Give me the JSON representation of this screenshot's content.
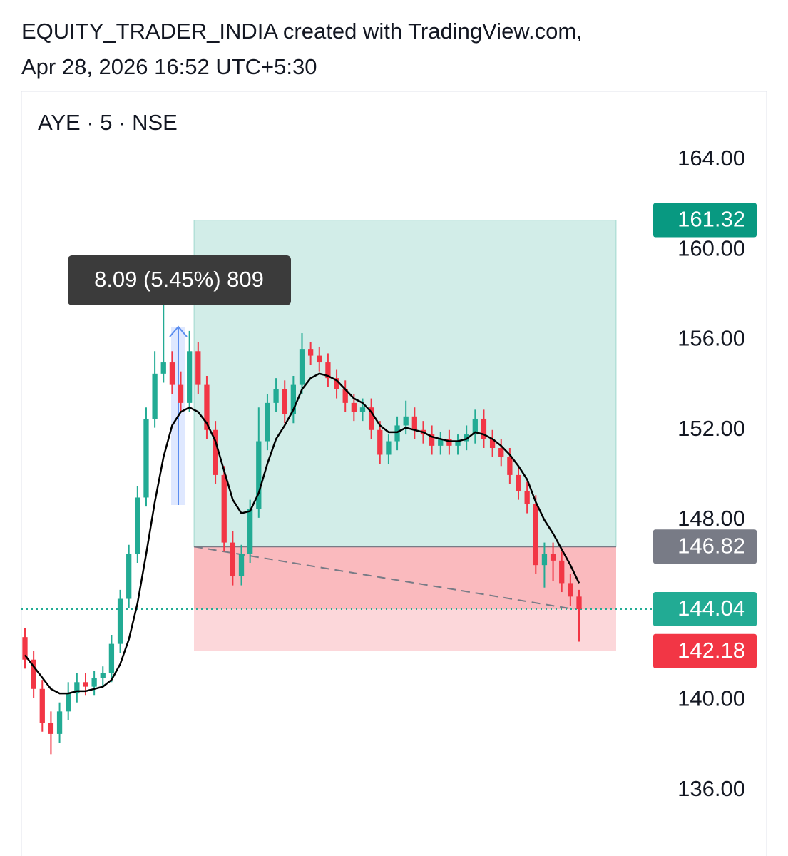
{
  "header": {
    "line1": "EQUITY_TRADER_INDIA created with TradingView.com,",
    "line2": "Apr 28, 2026 16:52 UTC+5:30"
  },
  "chart_data": {
    "type": "candlestick",
    "symbol": "AYE · 5 · NSE",
    "ylim": [
      133.08,
      167.04
    ],
    "yticks": [
      {
        "value": 136,
        "label": "136.00"
      },
      {
        "value": 140,
        "label": "140.00"
      },
      {
        "value": 144,
        "label": "144.00"
      },
      {
        "value": 148,
        "label": "148.00"
      },
      {
        "value": 152,
        "label": "152.00"
      },
      {
        "value": 156,
        "label": "156.00"
      },
      {
        "value": 160,
        "label": "160.00"
      },
      {
        "value": 164,
        "label": "164.00"
      }
    ],
    "up_color": "#22ab94",
    "down_color": "#f23645",
    "open": [
      142.8,
      141.8,
      140.5,
      139.0,
      138.5,
      139.5,
      140.3,
      140.8,
      140.6,
      141.0,
      141.2,
      142.5,
      144.5,
      146.5,
      149.0,
      152.5,
      154.5,
      155.0,
      154.0,
      153.2,
      155.5,
      154.0,
      152.0,
      150.0,
      147.0,
      145.5,
      146.5,
      148.5,
      151.5,
      153.2,
      153.8,
      152.7,
      154.0,
      155.6,
      155.3,
      155.0,
      154.3,
      153.8,
      153.2,
      152.8,
      153.0,
      152.0,
      150.9,
      151.5,
      152.2,
      152.6,
      152.0,
      151.8,
      151.3,
      151.6,
      151.3,
      151.5,
      151.8,
      152.5,
      151.6,
      151.2,
      150.8,
      150.0,
      149.3,
      148.7,
      146.0,
      146.5,
      146.2,
      145.2,
      144.6
    ],
    "high": [
      143.2,
      142.2,
      140.9,
      139.5,
      139.9,
      140.8,
      141.2,
      141.2,
      141.3,
      141.5,
      142.9,
      144.9,
      146.9,
      149.5,
      153.0,
      155.5,
      157.8,
      155.5,
      154.6,
      156.4,
      155.9,
      154.4,
      152.4,
      150.4,
      147.5,
      146.9,
      148.9,
      153.0,
      153.6,
      154.3,
      154.2,
      154.4,
      156.3,
      155.9,
      155.7,
      155.4,
      154.7,
      154.2,
      153.6,
      153.4,
      153.4,
      152.4,
      151.8,
      152.6,
      153.3,
      153.0,
      152.4,
      152.2,
      151.9,
      152.0,
      151.8,
      152.2,
      152.9,
      152.9,
      152.0,
      151.6,
      151.2,
      150.4,
      149.7,
      149.1,
      147.0,
      147.0,
      146.6,
      145.6,
      144.9
    ],
    "low": [
      141.4,
      140.1,
      138.6,
      137.6,
      138.1,
      139.1,
      139.9,
      140.2,
      140.2,
      140.6,
      140.8,
      142.1,
      144.1,
      146.1,
      148.6,
      152.1,
      154.1,
      153.6,
      152.8,
      152.8,
      153.6,
      151.6,
      149.6,
      146.6,
      145.1,
      145.1,
      146.1,
      148.1,
      151.1,
      152.8,
      152.3,
      152.3,
      153.6,
      154.9,
      154.6,
      153.9,
      153.4,
      152.8,
      152.4,
      152.4,
      151.6,
      150.5,
      150.5,
      151.1,
      151.8,
      151.6,
      151.4,
      150.9,
      150.9,
      150.9,
      150.9,
      151.1,
      151.4,
      151.2,
      150.8,
      150.4,
      149.6,
      148.9,
      148.3,
      145.6,
      145.0,
      145.3,
      144.8,
      144.2,
      142.6
    ],
    "close": [
      141.8,
      140.5,
      139.0,
      138.5,
      139.5,
      140.3,
      140.8,
      140.6,
      141.0,
      141.2,
      142.5,
      144.5,
      146.5,
      149.0,
      152.5,
      154.5,
      155.0,
      154.0,
      153.2,
      155.5,
      154.0,
      152.0,
      150.0,
      147.0,
      145.5,
      146.5,
      148.5,
      151.5,
      153.2,
      153.8,
      152.7,
      154.0,
      155.6,
      155.3,
      155.0,
      154.3,
      153.8,
      153.2,
      152.8,
      153.0,
      152.0,
      150.9,
      151.5,
      152.2,
      152.6,
      152.0,
      151.8,
      151.3,
      151.6,
      151.3,
      151.5,
      151.8,
      152.5,
      151.6,
      151.2,
      150.8,
      150.0,
      149.3,
      148.7,
      146.0,
      146.5,
      146.2,
      145.2,
      144.6,
      144.04
    ],
    "ma": [
      142.0,
      141.5,
      141.0,
      140.5,
      140.3,
      140.3,
      140.4,
      140.4,
      140.5,
      140.6,
      140.9,
      141.6,
      142.7,
      144.3,
      146.5,
      148.8,
      150.8,
      152.2,
      152.8,
      153.0,
      152.8,
      152.3,
      151.5,
      150.2,
      148.9,
      148.3,
      148.4,
      149.2,
      150.5,
      151.6,
      152.2,
      152.9,
      153.8,
      154.3,
      154.5,
      154.4,
      154.2,
      153.8,
      153.4,
      153.2,
      152.8,
      152.2,
      151.9,
      151.9,
      152.1,
      152.0,
      151.9,
      151.7,
      151.6,
      151.5,
      151.5,
      151.6,
      151.9,
      151.8,
      151.6,
      151.3,
      150.9,
      150.4,
      149.8,
      148.8,
      148.0,
      147.4,
      146.7,
      146.0,
      145.2
    ],
    "ma_color": "#000000",
    "position": {
      "target": 161.32,
      "entry": 146.82,
      "stop": 142.18,
      "target_color": "#089981",
      "entry_color": "#787b86",
      "stop_color": "#f23645"
    },
    "last_price": 144.04,
    "measure_label": "8.09 (5.45%) 809"
  }
}
